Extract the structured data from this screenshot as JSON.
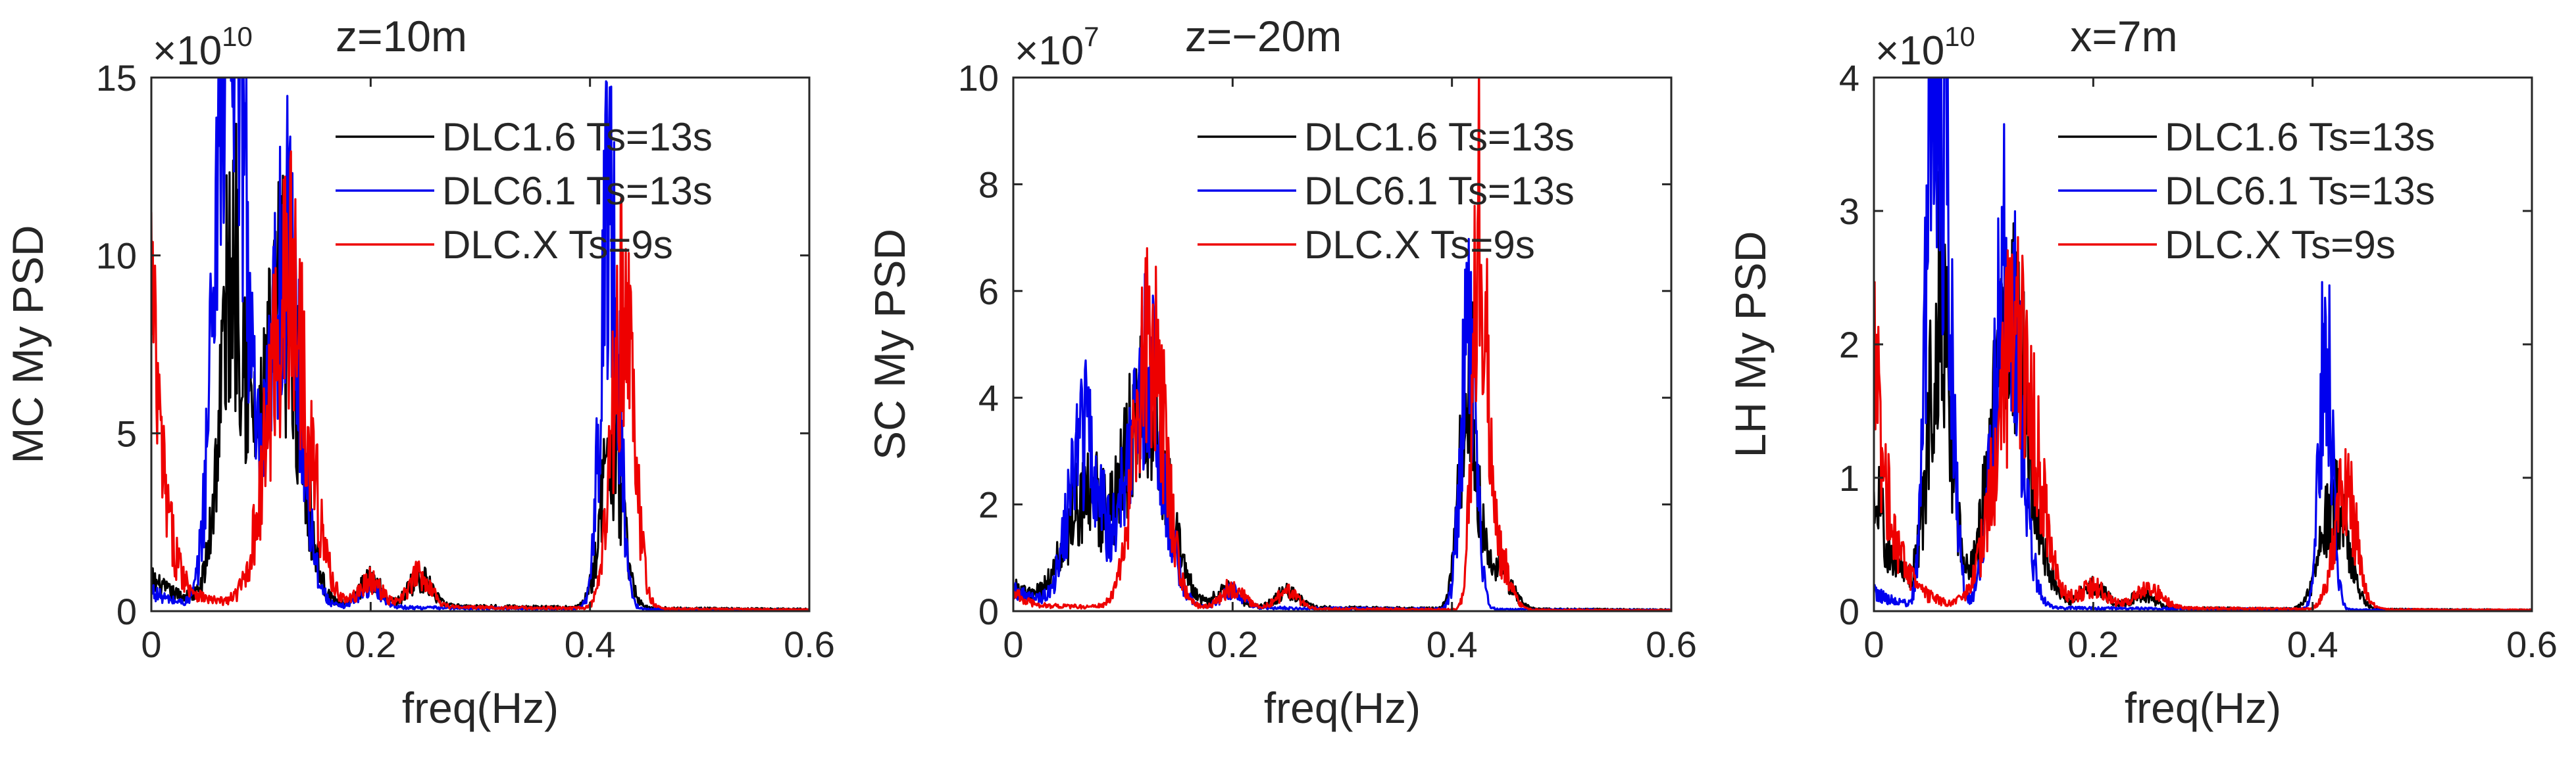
{
  "chart_data": [
    {
      "type": "line",
      "title": "z=10m",
      "xlabel": "freq(Hz)",
      "ylabel": "MC My PSD",
      "xlim": [
        0,
        0.6
      ],
      "ylim": [
        0,
        15
      ],
      "xticks": [
        0,
        0.2,
        0.4,
        0.6
      ],
      "xtick_labels": [
        "0",
        "0.2",
        "0.4",
        "0.6"
      ],
      "yticks": [
        0,
        5,
        10,
        15
      ],
      "ytick_labels": [
        "0",
        "5",
        "10",
        "15"
      ],
      "multiplier": {
        "base": "×10",
        "exponent": "10"
      },
      "legend_position": "top-right",
      "series": [
        {
          "name": "DLC1.6  Ts=13s",
          "color": "#000000",
          "peaks": [
            [
              0.075,
              9.5,
              0.012
            ],
            [
              0.12,
              8.5,
              0.016
            ],
            [
              0.2,
              0.7,
              0.01
            ],
            [
              0.245,
              0.8,
              0.01
            ],
            [
              0.42,
              4.5,
              0.01
            ]
          ],
          "base": 0.3,
          "edge": [
            0.6,
            0.02
          ]
        },
        {
          "name": "DLC6.1  Ts=13s",
          "color": "#0000ee",
          "peaks": [
            [
              0.065,
              12.8,
              0.01
            ],
            [
              0.08,
              13.0,
              0.009
            ],
            [
              0.122,
              10.0,
              0.014
            ],
            [
              0.2,
              0.6,
              0.01
            ],
            [
              0.418,
              11.5,
              0.008
            ]
          ],
          "base": 0.2,
          "edge": [
            0.4,
            0.015
          ]
        },
        {
          "name": "DLC.X  Ts=9s",
          "color": "#ee0000",
          "peaks": [
            [
              0.125,
              9.0,
              0.018
            ],
            [
              0.2,
              0.7,
              0.01
            ],
            [
              0.245,
              0.9,
              0.01
            ],
            [
              0.43,
              8.5,
              0.01
            ]
          ],
          "base": 0.25,
          "edge": [
            9.0,
            0.012
          ]
        }
      ]
    },
    {
      "type": "line",
      "title": "z=−20m",
      "xlabel": "freq(Hz)",
      "ylabel": "SC My PSD",
      "xlim": [
        0,
        0.6
      ],
      "ylim": [
        0,
        10
      ],
      "xticks": [
        0,
        0.2,
        0.4,
        0.6
      ],
      "xtick_labels": [
        "0",
        "0.2",
        "0.4",
        "0.6"
      ],
      "yticks": [
        0,
        2,
        4,
        6,
        8,
        10
      ],
      "ytick_labels": [
        "0",
        "2",
        "4",
        "6",
        "8",
        "10"
      ],
      "multiplier": {
        "base": "×10",
        "exponent": "7"
      },
      "legend_position": "top-right",
      "series": [
        {
          "name": "DLC1.6  Ts=13s",
          "color": "#000000",
          "peaks": [
            [
              0.065,
              2.0,
              0.018
            ],
            [
              0.12,
              3.6,
              0.02
            ],
            [
              0.195,
              0.3,
              0.01
            ],
            [
              0.25,
              0.3,
              0.01
            ],
            [
              0.415,
              4.2,
              0.008
            ],
            [
              0.44,
              0.9,
              0.012
            ]
          ],
          "base": 0.15,
          "edge": [
            0.3,
            0.02
          ]
        },
        {
          "name": "DLC6.1  Ts=13s",
          "color": "#0000ee",
          "peaks": [
            [
              0.065,
              3.2,
              0.014
            ],
            [
              0.12,
              4.5,
              0.016
            ],
            [
              0.2,
              0.3,
              0.01
            ],
            [
              0.415,
              5.0,
              0.007
            ]
          ],
          "base": 0.12,
          "edge": [
            0.3,
            0.02
          ]
        },
        {
          "name": "DLC.X  Ts=9s",
          "color": "#ee0000",
          "peaks": [
            [
              0.125,
              5.0,
              0.014
            ],
            [
              0.2,
              0.4,
              0.01
            ],
            [
              0.25,
              0.3,
              0.01
            ],
            [
              0.425,
              7.5,
              0.006
            ],
            [
              0.44,
              1.2,
              0.01
            ]
          ],
          "base": 0.1,
          "edge": [
            0.3,
            0.01
          ]
        }
      ]
    },
    {
      "type": "line",
      "title": "x=7m",
      "xlabel": "freq(Hz)",
      "ylabel": "LH My PSD",
      "xlim": [
        0,
        0.6
      ],
      "ylim": [
        0,
        4
      ],
      "xticks": [
        0,
        0.2,
        0.4,
        0.6
      ],
      "xtick_labels": [
        "0",
        "0.2",
        "0.4",
        "0.6"
      ],
      "yticks": [
        0,
        1,
        2,
        3,
        4
      ],
      "ytick_labels": [
        "0",
        "1",
        "2",
        "3",
        "4"
      ],
      "multiplier": {
        "base": "×10",
        "exponent": "10"
      },
      "legend_position": "top-right",
      "series": [
        {
          "name": "DLC1.6  Ts=13s",
          "color": "#000000",
          "peaks": [
            [
              0.06,
              2.2,
              0.01
            ],
            [
              0.125,
              2.0,
              0.018
            ],
            [
              0.2,
              0.15,
              0.012
            ],
            [
              0.245,
              0.1,
              0.01
            ],
            [
              0.42,
              0.8,
              0.012
            ]
          ],
          "base": 0.05,
          "edge": [
            0.9,
            0.02
          ]
        },
        {
          "name": "DLC6.1  Ts=13s",
          "color": "#0000ee",
          "peaks": [
            [
              0.052,
              3.2,
              0.006
            ],
            [
              0.065,
              3.0,
              0.007
            ],
            [
              0.122,
              2.6,
              0.012
            ],
            [
              0.412,
              2.0,
              0.006
            ]
          ],
          "base": 0.04,
          "edge": [
            0.1,
            0.02
          ]
        },
        {
          "name": "DLC.X  Ts=9s",
          "color": "#ee0000",
          "peaks": [
            [
              0.13,
              2.1,
              0.018
            ],
            [
              0.2,
              0.15,
              0.012
            ],
            [
              0.25,
              0.15,
              0.012
            ],
            [
              0.43,
              0.9,
              0.01
            ]
          ],
          "base": 0.05,
          "edge": [
            2.0,
            0.015
          ]
        }
      ]
    }
  ]
}
